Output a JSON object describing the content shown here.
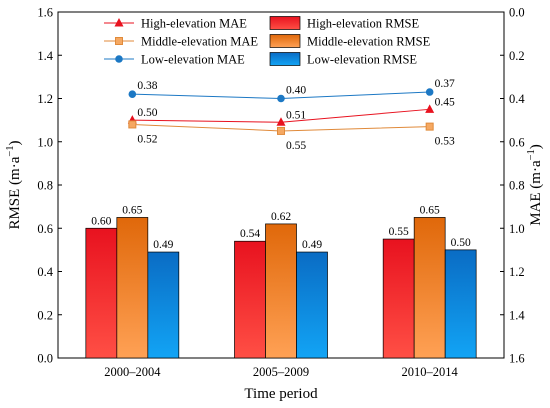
{
  "chart_data": {
    "type": "bar",
    "title": "",
    "xlabel": "Time period",
    "ylabel_left": {
      "main": "RMSE (m·a",
      "sup": "−1",
      "close": ")"
    },
    "ylabel_right": {
      "main": "MAE (m·a",
      "sup": "−1",
      "close": ")"
    },
    "categories": [
      "2000–2004",
      "2005–2009",
      "2010–2014"
    ],
    "ylim_left": [
      0,
      1.6
    ],
    "yticks_left": [
      "0.0",
      "0.2",
      "0.4",
      "0.6",
      "0.8",
      "1.0",
      "1.2",
      "1.4",
      "1.6"
    ],
    "ylim_right": [
      1.6,
      0.0
    ],
    "yticks_right": [
      "0.0",
      "0.2",
      "0.4",
      "0.6",
      "0.8",
      "1.0",
      "1.2",
      "1.4",
      "1.6"
    ],
    "bar_series": [
      {
        "name": "High-elevation RMSE",
        "values": [
          0.6,
          0.54,
          0.55
        ],
        "labels": [
          "0.60",
          "0.54",
          "0.55"
        ],
        "color_top": "#e8121f",
        "color_bottom": "#ff4f45"
      },
      {
        "name": "Middle-elevation RMSE",
        "values": [
          0.65,
          0.62,
          0.65
        ],
        "labels": [
          "0.65",
          "0.62",
          "0.65"
        ],
        "color_top": "#e0680a",
        "color_bottom": "#ffa155"
      },
      {
        "name": "Low-elevation RMSE",
        "values": [
          0.49,
          0.49,
          0.5
        ],
        "labels": [
          "0.49",
          "0.49",
          "0.50"
        ],
        "color_top": "#0a6cc4",
        "color_bottom": "#12a4f5"
      }
    ],
    "line_series": [
      {
        "name": "High-elevation MAE",
        "values": [
          0.5,
          0.51,
          0.45
        ],
        "labels": [
          "0.50",
          "0.51",
          "0.45"
        ],
        "color": "#e8121f",
        "marker": "triangle"
      },
      {
        "name": "Middle-elevation MAE",
        "values": [
          0.52,
          0.55,
          0.53
        ],
        "labels": [
          "0.52",
          "0.55",
          "0.53"
        ],
        "color": "#e08a3a",
        "marker": "square"
      },
      {
        "name": "Low-elevation MAE",
        "values": [
          0.38,
          0.4,
          0.37
        ],
        "labels": [
          "0.38",
          "0.40",
          "0.37"
        ],
        "color": "#1c78c4",
        "marker": "circle"
      }
    ],
    "legend": {
      "placement": "top",
      "items": [
        "High-elevation MAE",
        "High-elevation RMSE",
        "Middle-elevation MAE",
        "Middle-elevation RMSE",
        "Low-elevation MAE",
        "Low-elevation RMSE"
      ]
    },
    "grid": false
  }
}
